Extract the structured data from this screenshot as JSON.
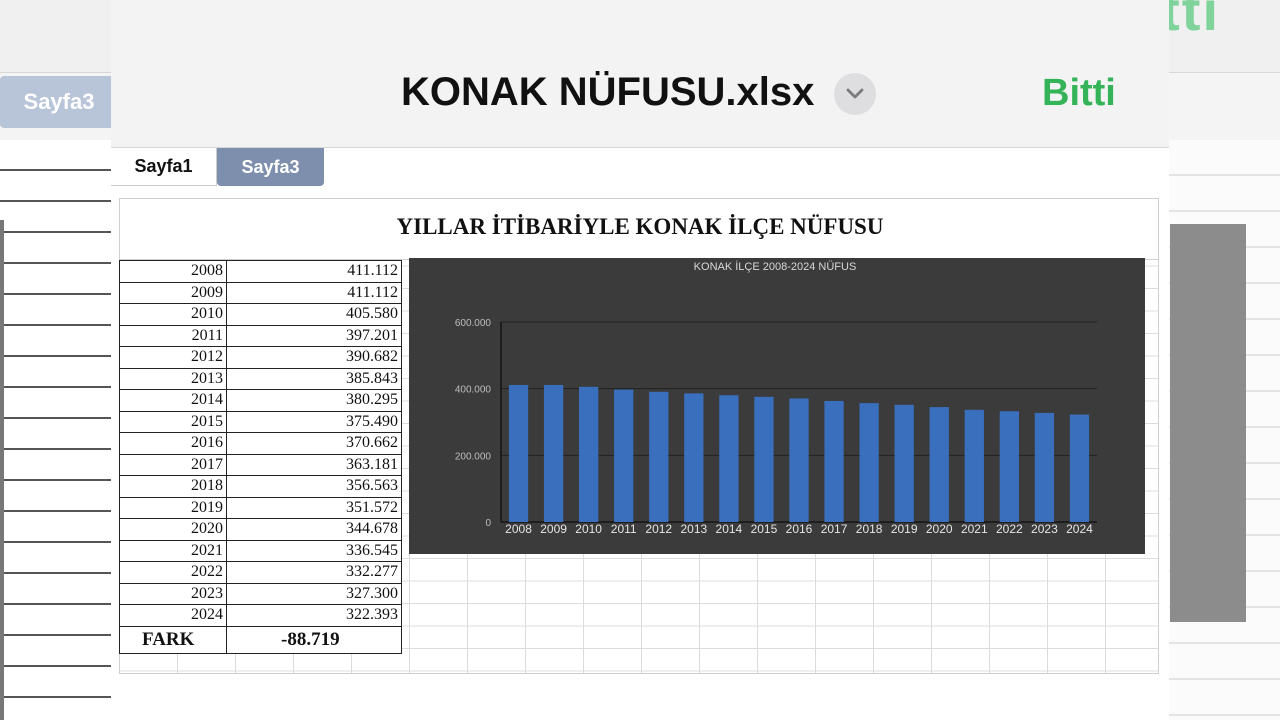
{
  "background": {
    "done_label_partial": "tti",
    "tab_label": "Sayfa3"
  },
  "header": {
    "filename": "KONAK NÜFUSU.xlsx",
    "done_label": "Bitti"
  },
  "tabs": [
    {
      "label": "Sayfa1",
      "active": true
    },
    {
      "label": "Sayfa3",
      "active": false
    }
  ],
  "sheet": {
    "title": "YILLAR İTİBARİYLE KONAK İLÇE NÜFUSU",
    "rows": [
      {
        "year": "2008",
        "value": "411.112"
      },
      {
        "year": "2009",
        "value": "411.112"
      },
      {
        "year": "2010",
        "value": "405.580"
      },
      {
        "year": "2011",
        "value": "397.201"
      },
      {
        "year": "2012",
        "value": "390.682"
      },
      {
        "year": "2013",
        "value": "385.843"
      },
      {
        "year": "2014",
        "value": "380.295"
      },
      {
        "year": "2015",
        "value": "375.490"
      },
      {
        "year": "2016",
        "value": "370.662"
      },
      {
        "year": "2017",
        "value": "363.181"
      },
      {
        "year": "2018",
        "value": "356.563"
      },
      {
        "year": "2019",
        "value": "351.572"
      },
      {
        "year": "2020",
        "value": "344.678"
      },
      {
        "year": "2021",
        "value": "336.545"
      },
      {
        "year": "2022",
        "value": "332.277"
      },
      {
        "year": "2023",
        "value": "327.300"
      },
      {
        "year": "2024",
        "value": "322.393"
      }
    ],
    "fark_label": "FARK",
    "fark_value": "-88.719"
  },
  "chart_data": {
    "type": "bar",
    "title": "KONAK İLÇE 2008-2024 NÜFUS",
    "categories": [
      "2008",
      "2009",
      "2010",
      "2011",
      "2012",
      "2013",
      "2014",
      "2015",
      "2016",
      "2017",
      "2018",
      "2019",
      "2020",
      "2021",
      "2022",
      "2023",
      "2024"
    ],
    "values": [
      411112,
      411112,
      405580,
      397201,
      390682,
      385843,
      380295,
      375490,
      370662,
      363181,
      356563,
      351572,
      344678,
      336545,
      332277,
      327300,
      322393
    ],
    "y_ticks": [
      "0",
      "200.000",
      "400.000",
      "600.000"
    ],
    "ylim": [
      0,
      600000
    ],
    "grid": true,
    "bar_color": "#3a6fbe",
    "background_color": "#3b3b3b"
  },
  "colors": {
    "done": "#34b358",
    "tab_inactive": "#7e8fae"
  }
}
